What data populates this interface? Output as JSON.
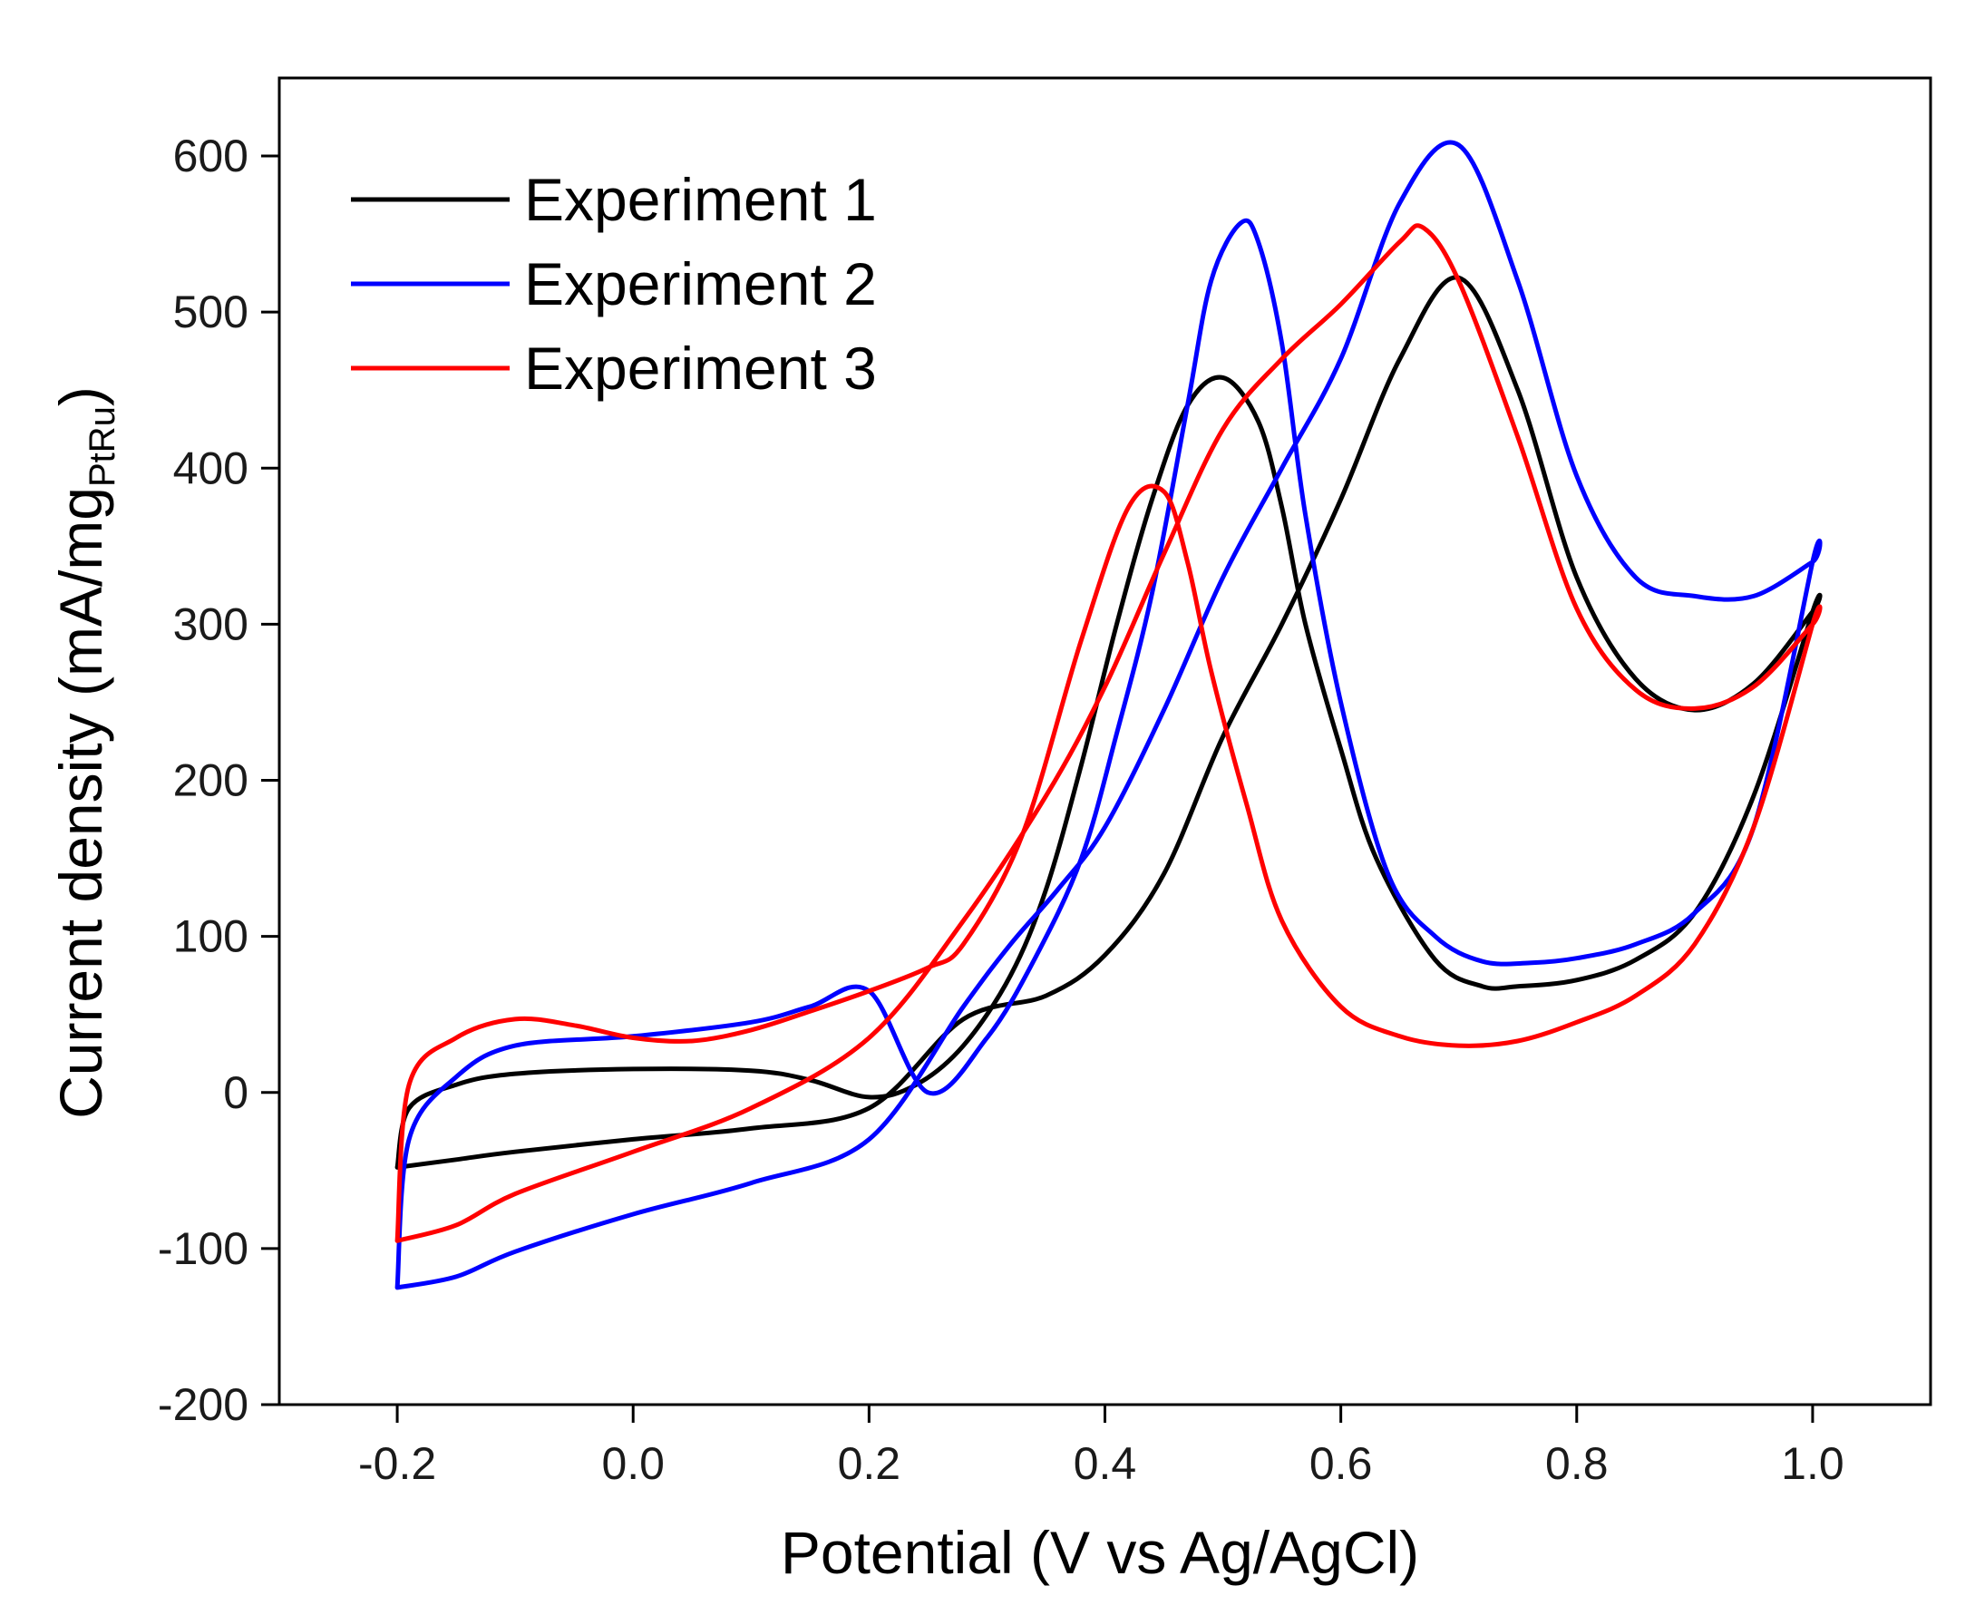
{
  "chart_data": {
    "type": "line",
    "title": "",
    "xlabel": "Potential (V vs Ag/AgCl)",
    "ylabel": {
      "main": "Current density (mA/mg",
      "subscript": "PtRu",
      "close": ")"
    },
    "xlim": [
      -0.3,
      1.1
    ],
    "ylim": [
      -200,
      650
    ],
    "xticks": [
      -0.2,
      0.0,
      0.2,
      0.4,
      0.6,
      0.8,
      1.0
    ],
    "xtick_labels": [
      "-0.2",
      "0.0",
      "0.2",
      "0.4",
      "0.6",
      "0.8",
      "1.0"
    ],
    "yticks": [
      -200,
      -100,
      0,
      100,
      200,
      300,
      400,
      500,
      600
    ],
    "ytick_labels": [
      "-200",
      "-100",
      "0",
      "100",
      "200",
      "300",
      "400",
      "500",
      "600"
    ],
    "grid": false,
    "legend_position": "top-left",
    "series": [
      {
        "name": "Experiment 1",
        "color": "#000000",
        "x": [
          -0.2,
          -0.15,
          -0.1,
          0.0,
          0.1,
          0.2,
          0.28,
          0.35,
          0.4,
          0.45,
          0.5,
          0.55,
          0.6,
          0.65,
          0.7,
          0.75,
          0.8,
          0.85,
          0.9,
          0.95,
          1.0,
          1.0,
          0.95,
          0.9,
          0.85,
          0.8,
          0.75,
          0.72,
          0.68,
          0.63,
          0.6,
          0.57,
          0.55,
          0.53,
          0.5,
          0.47,
          0.44,
          0.41,
          0.38,
          0.35,
          0.32,
          0.28,
          0.24,
          0.2,
          0.15,
          0.1,
          0.0,
          -0.1,
          -0.15,
          -0.19,
          -0.2
        ],
        "y": [
          -48,
          -43,
          -38,
          -30,
          -23,
          -10,
          47,
          62,
          88,
          140,
          228,
          300,
          380,
          470,
          522,
          450,
          330,
          265,
          245,
          262,
          308,
          308,
          190,
          115,
          85,
          72,
          68,
          68,
          85,
          150,
          220,
          300,
          375,
          430,
          458,
          440,
          380,
          300,
          210,
          130,
          75,
          30,
          5,
          -3,
          8,
          14,
          15,
          12,
          5,
          -10,
          -48
        ]
      },
      {
        "name": "Experiment 2",
        "color": "#0000ff",
        "x": [
          -0.2,
          -0.15,
          -0.1,
          0.0,
          0.1,
          0.2,
          0.28,
          0.32,
          0.36,
          0.4,
          0.45,
          0.5,
          0.55,
          0.6,
          0.65,
          0.7,
          0.75,
          0.8,
          0.85,
          0.9,
          0.95,
          1.0,
          1.0,
          0.95,
          0.9,
          0.85,
          0.8,
          0.76,
          0.72,
          0.68,
          0.64,
          0.6,
          0.57,
          0.55,
          0.53,
          0.515,
          0.49,
          0.47,
          0.44,
          0.41,
          0.38,
          0.34,
          0.3,
          0.25,
          0.2,
          0.15,
          0.1,
          0.0,
          -0.1,
          -0.15,
          -0.19,
          -0.2
        ],
        "y": [
          -125,
          -118,
          -102,
          -78,
          -58,
          -30,
          55,
          95,
          130,
          170,
          245,
          330,
          400,
          470,
          570,
          607,
          520,
          395,
          330,
          318,
          318,
          340,
          340,
          170,
          115,
          95,
          86,
          83,
          84,
          100,
          140,
          250,
          370,
          480,
          545,
          557,
          520,
          440,
          320,
          230,
          150,
          85,
          35,
          0,
          65,
          55,
          45,
          36,
          30,
          10,
          -30,
          -125
        ]
      },
      {
        "name": "Experiment 3",
        "color": "#ff0000",
        "x": [
          -0.2,
          -0.15,
          -0.1,
          0.0,
          0.1,
          0.2,
          0.28,
          0.35,
          0.4,
          0.45,
          0.5,
          0.55,
          0.6,
          0.65,
          0.67,
          0.7,
          0.75,
          0.8,
          0.85,
          0.9,
          0.95,
          1.0,
          1.0,
          0.95,
          0.9,
          0.85,
          0.8,
          0.75,
          0.7,
          0.65,
          0.6,
          0.55,
          0.52,
          0.49,
          0.47,
          0.45,
          0.42,
          0.38,
          0.33,
          0.28,
          0.25,
          0.2,
          0.15,
          0.1,
          0.05,
          0.0,
          -0.05,
          -0.1,
          -0.15,
          -0.19,
          -0.2
        ],
        "y": [
          -95,
          -85,
          -65,
          -38,
          -10,
          35,
          110,
          190,
          260,
          345,
          425,
          470,
          505,
          545,
          554,
          520,
          420,
          310,
          258,
          246,
          260,
          300,
          300,
          170,
          95,
          62,
          45,
          33,
          30,
          36,
          55,
          110,
          185,
          270,
          340,
          385,
          375,
          290,
          165,
          95,
          80,
          65,
          52,
          40,
          33,
          35,
          43,
          47,
          35,
          5,
          -95
        ]
      }
    ]
  }
}
